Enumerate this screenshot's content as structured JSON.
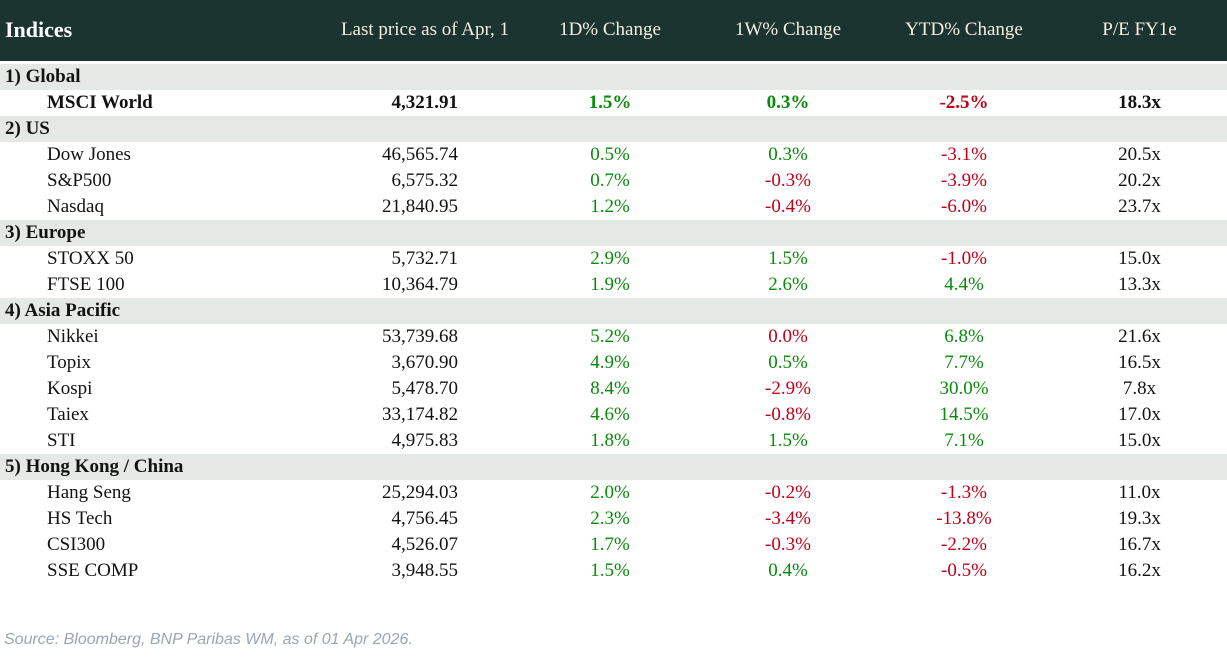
{
  "colors": {
    "header_bg": "#1c342f",
    "header_text": "#f2eee3",
    "header_title_text": "#ffffff",
    "section_bg": "#e4e9e5",
    "row_bg": "#ffffff",
    "text": "#121212",
    "positive": "#0a8a0a",
    "negative": "#c00018",
    "source_text": "#9ba6ae"
  },
  "chart_data": {
    "type": "table",
    "title": "Indices",
    "columns": [
      "Indices",
      "Last price as of Apr, 1",
      "1D% Change",
      "1W% Change",
      "YTD% Change",
      "P/E FY1e"
    ],
    "sections": [
      {
        "label": "1) Global",
        "rows": [
          {
            "name": "MSCI World",
            "last_price": "4,321.91",
            "emphasis": true,
            "changes": [
              {
                "value": "1.5%",
                "direction": "up"
              },
              {
                "value": "0.3%",
                "direction": "up"
              },
              {
                "value": "-2.5%",
                "direction": "down"
              }
            ],
            "pe_fy1e": "18.3x"
          }
        ]
      },
      {
        "label": "2) US",
        "rows": [
          {
            "name": "Dow Jones",
            "last_price": "46,565.74",
            "emphasis": false,
            "changes": [
              {
                "value": "0.5%",
                "direction": "up"
              },
              {
                "value": "0.3%",
                "direction": "up"
              },
              {
                "value": "-3.1%",
                "direction": "down"
              }
            ],
            "pe_fy1e": "20.5x"
          },
          {
            "name": "S&P500",
            "last_price": "6,575.32",
            "emphasis": false,
            "changes": [
              {
                "value": "0.7%",
                "direction": "up"
              },
              {
                "value": "-0.3%",
                "direction": "down"
              },
              {
                "value": "-3.9%",
                "direction": "down"
              }
            ],
            "pe_fy1e": "20.2x"
          },
          {
            "name": "Nasdaq",
            "last_price": "21,840.95",
            "emphasis": false,
            "changes": [
              {
                "value": "1.2%",
                "direction": "up"
              },
              {
                "value": "-0.4%",
                "direction": "down"
              },
              {
                "value": "-6.0%",
                "direction": "down"
              }
            ],
            "pe_fy1e": "23.7x"
          }
        ]
      },
      {
        "label": "3) Europe",
        "rows": [
          {
            "name": "STOXX 50",
            "last_price": "5,732.71",
            "emphasis": false,
            "changes": [
              {
                "value": "2.9%",
                "direction": "up"
              },
              {
                "value": "1.5%",
                "direction": "up"
              },
              {
                "value": "-1.0%",
                "direction": "down"
              }
            ],
            "pe_fy1e": "15.0x"
          },
          {
            "name": "FTSE 100",
            "last_price": "10,364.79",
            "emphasis": false,
            "changes": [
              {
                "value": "1.9%",
                "direction": "up"
              },
              {
                "value": "2.6%",
                "direction": "up"
              },
              {
                "value": "4.4%",
                "direction": "up"
              }
            ],
            "pe_fy1e": "13.3x"
          }
        ]
      },
      {
        "label": "4) Asia Pacific",
        "rows": [
          {
            "name": "Nikkei",
            "last_price": "53,739.68",
            "emphasis": false,
            "changes": [
              {
                "value": "5.2%",
                "direction": "up"
              },
              {
                "value": "0.0%",
                "direction": "down"
              },
              {
                "value": "6.8%",
                "direction": "up"
              }
            ],
            "pe_fy1e": "21.6x"
          },
          {
            "name": "Topix",
            "last_price": "3,670.90",
            "emphasis": false,
            "changes": [
              {
                "value": "4.9%",
                "direction": "up"
              },
              {
                "value": "0.5%",
                "direction": "up"
              },
              {
                "value": "7.7%",
                "direction": "up"
              }
            ],
            "pe_fy1e": "16.5x"
          },
          {
            "name": "Kospi",
            "last_price": "5,478.70",
            "emphasis": false,
            "changes": [
              {
                "value": "8.4%",
                "direction": "up"
              },
              {
                "value": "-2.9%",
                "direction": "down"
              },
              {
                "value": "30.0%",
                "direction": "up"
              }
            ],
            "pe_fy1e": "7.8x"
          },
          {
            "name": "Taiex",
            "last_price": "33,174.82",
            "emphasis": false,
            "changes": [
              {
                "value": "4.6%",
                "direction": "up"
              },
              {
                "value": "-0.8%",
                "direction": "down"
              },
              {
                "value": "14.5%",
                "direction": "up"
              }
            ],
            "pe_fy1e": "17.0x"
          },
          {
            "name": "STI",
            "last_price": "4,975.83",
            "emphasis": false,
            "changes": [
              {
                "value": "1.8%",
                "direction": "up"
              },
              {
                "value": "1.5%",
                "direction": "up"
              },
              {
                "value": "7.1%",
                "direction": "up"
              }
            ],
            "pe_fy1e": "15.0x"
          }
        ]
      },
      {
        "label": "5) Hong Kong / China",
        "rows": [
          {
            "name": "Hang Seng",
            "last_price": "25,294.03",
            "emphasis": false,
            "changes": [
              {
                "value": "2.0%",
                "direction": "up"
              },
              {
                "value": "-0.2%",
                "direction": "down"
              },
              {
                "value": "-1.3%",
                "direction": "down"
              }
            ],
            "pe_fy1e": "11.0x"
          },
          {
            "name": "HS Tech",
            "last_price": "4,756.45",
            "emphasis": false,
            "changes": [
              {
                "value": "2.3%",
                "direction": "up"
              },
              {
                "value": "-3.4%",
                "direction": "down"
              },
              {
                "value": "-13.8%",
                "direction": "down"
              }
            ],
            "pe_fy1e": "19.3x"
          },
          {
            "name": "CSI300",
            "last_price": "4,526.07",
            "emphasis": false,
            "changes": [
              {
                "value": "1.7%",
                "direction": "up"
              },
              {
                "value": "-0.3%",
                "direction": "down"
              },
              {
                "value": "-2.2%",
                "direction": "down"
              }
            ],
            "pe_fy1e": "16.7x"
          },
          {
            "name": "SSE COMP",
            "last_price": "3,948.55",
            "emphasis": false,
            "changes": [
              {
                "value": "1.5%",
                "direction": "up"
              },
              {
                "value": "0.4%",
                "direction": "up"
              },
              {
                "value": "-0.5%",
                "direction": "down"
              }
            ],
            "pe_fy1e": "16.2x"
          }
        ]
      }
    ]
  },
  "footer": {
    "source": "Source: Bloomberg, BNP Paribas WM, as of 01 Apr 2026."
  }
}
